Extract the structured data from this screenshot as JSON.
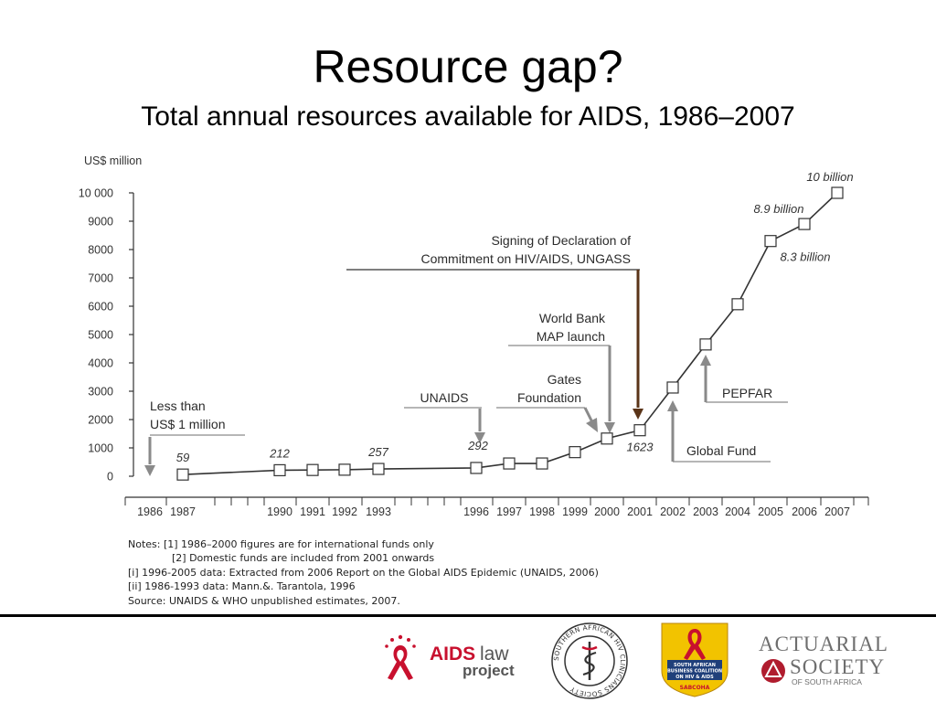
{
  "slide": {
    "title": "Resource gap?",
    "subtitle": "Total annual resources available for AIDS, 1986–2007"
  },
  "chart_data": {
    "type": "line",
    "y_unit_label": "US$ million",
    "x_categories": [
      "1986",
      "1987",
      "1990",
      "1991",
      "1992",
      "1993",
      "1996",
      "1997",
      "1998",
      "1999",
      "2000",
      "2001",
      "2002",
      "2003",
      "2004",
      "2005",
      "2006",
      "2007"
    ],
    "ylim": [
      0,
      10000
    ],
    "y_ticks": [
      {
        "value": 0,
        "label": "0"
      },
      {
        "value": 1000,
        "label": "1000"
      },
      {
        "value": 2000,
        "label": "2000"
      },
      {
        "value": 3000,
        "label": "3000"
      },
      {
        "value": 4000,
        "label": "4000"
      },
      {
        "value": 5000,
        "label": "5000"
      },
      {
        "value": 6000,
        "label": "6000"
      },
      {
        "value": 7000,
        "label": "7000"
      },
      {
        "value": 8000,
        "label": "8000"
      },
      {
        "value": 9000,
        "label": "9000"
      },
      {
        "value": 10000,
        "label": "10 000"
      }
    ],
    "series": [
      {
        "points": [
          {
            "x": 1987,
            "y": 59,
            "label": "59"
          },
          {
            "x": 1990,
            "y": 212,
            "label": "212"
          },
          {
            "x": 1991,
            "y": 220
          },
          {
            "x": 1992,
            "y": 230
          },
          {
            "x": 1993,
            "y": 257,
            "label": "257"
          },
          {
            "x": 1996,
            "y": 292,
            "label": "292"
          },
          {
            "x": 1997,
            "y": 450
          },
          {
            "x": 1998,
            "y": 450
          },
          {
            "x": 1999,
            "y": 850
          },
          {
            "x": 2000,
            "y": 1330
          },
          {
            "x": 2001,
            "y": 1623,
            "label": "1623"
          },
          {
            "x": 2002,
            "y": 3130
          },
          {
            "x": 2003,
            "y": 4650
          },
          {
            "x": 2004,
            "y": 6070
          },
          {
            "x": 2005,
            "y": 8300,
            "label": "8.3 billion"
          },
          {
            "x": 2006,
            "y": 8900,
            "label": "8.9 billion"
          },
          {
            "x": 2007,
            "y": 10000,
            "label": "10 billion"
          }
        ]
      }
    ],
    "annotations": [
      {
        "lines": [
          "Less than",
          "US$ 1 million"
        ],
        "x": 1986,
        "y_tip": 0
      },
      {
        "lines": [
          "UNAIDS"
        ],
        "x": 1996,
        "y_tip": 292
      },
      {
        "lines": [
          "Gates",
          "Foundation"
        ],
        "x": 2000,
        "y_tip": 1330
      },
      {
        "lines": [
          "World Bank",
          "MAP launch"
        ],
        "x": 2000,
        "y_tip": 1330
      },
      {
        "lines": [
          "Signing of Declaration of",
          "Commitment on HIV/AIDS, UNGASS"
        ],
        "x": 2001,
        "y_tip": 1623
      },
      {
        "lines": [
          "Global Fund"
        ],
        "x": 2002,
        "y_tip": 3130
      },
      {
        "lines": [
          "PEPFAR"
        ],
        "x": 2003,
        "y_tip": 4650
      }
    ]
  },
  "notes": [
    "Notes:  [1] 1986–2000 figures are for international funds only",
    "[2] Domestic funds are included from 2001 onwards",
    "[i] 1996-2005 data: Extracted from 2006 Report on the Global AIDS Epidemic (UNAIDS, 2006)",
    "[ii] 1986-1993 data: Mann.&. Tarantola, 1996",
    "Source:  UNAIDS & WHO unpublished estimates, 2007."
  ],
  "logos": {
    "aids_law": {
      "word1": "AIDS",
      "word2": "law",
      "word3": "project",
      "icon": "red-ribbon-icon",
      "color_red": "#c8102e",
      "color_gray": "#555555"
    },
    "clinicians": {
      "ring_text": "SOUTHERN AFRICAN HIV CLINICIANS SOCIETY",
      "icon": "caduceus-icon"
    },
    "sabcoha": {
      "line1": "SOUTH AFRICAN",
      "line2": "BUSINESS COALITION",
      "line3": "ON HIV & AIDS",
      "line4": "SABCOHA",
      "icon": "red-ribbon-icon",
      "color_yellow": "#f2c300"
    },
    "actuarial": {
      "line1": "ACTUARIAL",
      "line2": "SOCIETY",
      "line3": "OF SOUTH AFRICA",
      "color_red": "#b01c2e",
      "color_gray": "#6e6e6e"
    }
  }
}
